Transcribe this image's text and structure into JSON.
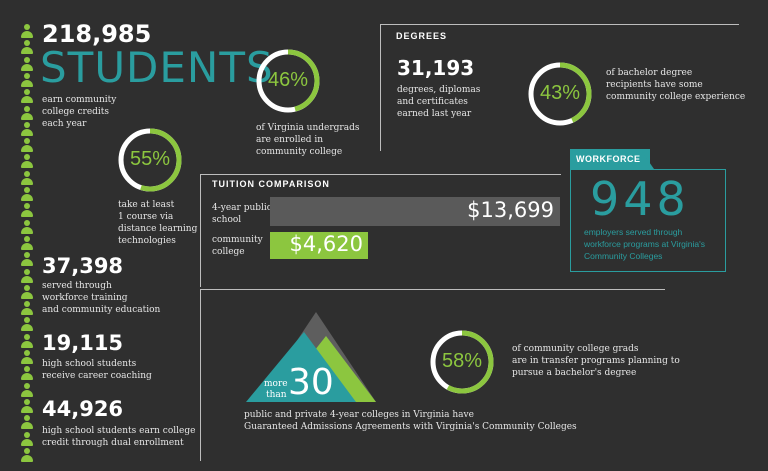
{
  "colors": {
    "background": "#2f2f2f",
    "green": "#8cc63f",
    "teal": "#2a9d9f",
    "gray_bar": "#5a5a5a",
    "line": "#bdbdbd"
  },
  "students": {
    "number": "218,985",
    "word": "STUDENTS",
    "caption": [
      "earn community",
      "college credits",
      "each year"
    ]
  },
  "stat_55": {
    "percent": "55%",
    "value": 0.55,
    "caption": [
      "take at least",
      "1 course via",
      "distance learning",
      "technologies"
    ]
  },
  "stat_46": {
    "percent": "46%",
    "value": 0.46,
    "caption": [
      "of Virginia undergrads",
      "are enrolled in",
      "community college"
    ]
  },
  "degrees": {
    "label": "DEGREES",
    "number": "31,193",
    "caption": [
      "degrees, diplomas",
      "and certificates",
      "earned last year"
    ]
  },
  "stat_43": {
    "percent": "43%",
    "value": 0.43,
    "caption": [
      "of bachelor degree",
      "recipients have some",
      "community college experience"
    ]
  },
  "tuition": {
    "label": "TUITION COMPARISON",
    "public_label": [
      "4-year public",
      "school"
    ],
    "public_value": "$13,699",
    "public_amount": 13699,
    "cc_label": [
      "community",
      "college"
    ],
    "cc_value": "$4,620",
    "cc_amount": 4620
  },
  "workforce": {
    "label": "WORKFORCE",
    "number": "948",
    "caption": [
      "employers served through",
      "workforce programs at Virginia's",
      "Community Colleges"
    ]
  },
  "stat_37398": {
    "number": "37,398",
    "caption": [
      "served through",
      "workforce training",
      "and community education"
    ]
  },
  "stat_19115": {
    "number": "19,115",
    "caption": [
      "high school students",
      "receive career coaching"
    ]
  },
  "stat_44926": {
    "number": "44,926",
    "caption": [
      "high school students earn college",
      "credit through dual enrollment"
    ]
  },
  "colleges": {
    "more": "more",
    "than": "than",
    "number": "30",
    "caption": [
      "public and private 4-year colleges in Virginia have",
      "Guaranteed Admissions Agreements with Virginia's Community Colleges"
    ]
  },
  "stat_58": {
    "percent": "58%",
    "value": 0.58,
    "caption": [
      "of community college grads",
      "are in transfer programs planning to",
      "pursue a bachelor's degree"
    ]
  },
  "icons": [
    "person-icon",
    "progress-ring-icon",
    "mountain-icon"
  ]
}
